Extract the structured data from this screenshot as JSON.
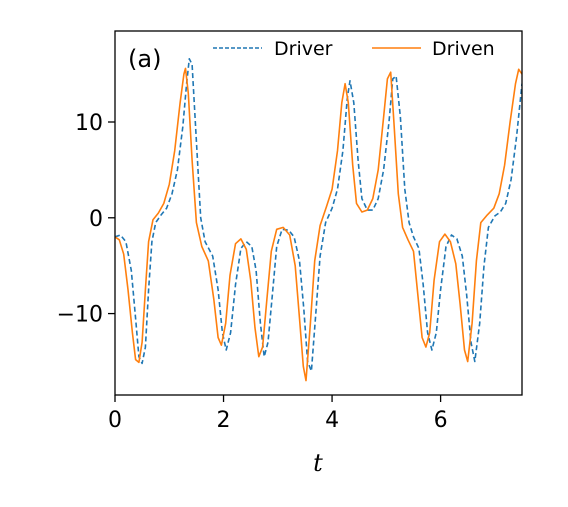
{
  "chart_data": {
    "type": "line",
    "panel_label": "(a)",
    "xlabel": "t",
    "ylabel": "",
    "xlim": [
      0,
      7.5
    ],
    "ylim": [
      -18.5,
      19.5
    ],
    "xticks": [
      0,
      2,
      4,
      6
    ],
    "yticks": [
      10,
      0,
      -10
    ],
    "ytick_labels": [
      "10",
      "0",
      "−10"
    ],
    "grid": false,
    "legend_position": "top-right",
    "series": [
      {
        "name": "Driver",
        "color": "#1f77b4",
        "style": "dashed",
        "points": [
          [
            0.0,
            -2.0
          ],
          [
            0.1,
            -1.8
          ],
          [
            0.2,
            -2.5
          ],
          [
            0.3,
            -5.5
          ],
          [
            0.38,
            -10.5
          ],
          [
            0.44,
            -14.5
          ],
          [
            0.5,
            -15.2
          ],
          [
            0.56,
            -13.5
          ],
          [
            0.62,
            -7.5
          ],
          [
            0.68,
            -2.5
          ],
          [
            0.75,
            -0.5
          ],
          [
            0.85,
            0.3
          ],
          [
            0.95,
            1.0
          ],
          [
            1.05,
            2.5
          ],
          [
            1.15,
            5.0
          ],
          [
            1.25,
            9.5
          ],
          [
            1.32,
            14.0
          ],
          [
            1.37,
            16.6
          ],
          [
            1.42,
            16.0
          ],
          [
            1.5,
            8.0
          ],
          [
            1.58,
            0.0
          ],
          [
            1.66,
            -2.5
          ],
          [
            1.8,
            -4.0
          ],
          [
            1.9,
            -7.5
          ],
          [
            1.98,
            -12.0
          ],
          [
            2.05,
            -13.8
          ],
          [
            2.13,
            -12.0
          ],
          [
            2.22,
            -7.0
          ],
          [
            2.32,
            -3.2
          ],
          [
            2.42,
            -2.5
          ],
          [
            2.52,
            -3.0
          ],
          [
            2.6,
            -5.5
          ],
          [
            2.68,
            -11.0
          ],
          [
            2.75,
            -14.5
          ],
          [
            2.82,
            -13.0
          ],
          [
            2.9,
            -8.0
          ],
          [
            2.98,
            -3.0
          ],
          [
            3.08,
            -1.2
          ],
          [
            3.2,
            -1.3
          ],
          [
            3.3,
            -2.0
          ],
          [
            3.4,
            -4.5
          ],
          [
            3.48,
            -9.5
          ],
          [
            3.55,
            -15.0
          ],
          [
            3.62,
            -16.0
          ],
          [
            3.7,
            -10.0
          ],
          [
            3.78,
            -4.0
          ],
          [
            3.88,
            -0.5
          ],
          [
            4.0,
            1.0
          ],
          [
            4.1,
            3.0
          ],
          [
            4.2,
            7.0
          ],
          [
            4.28,
            12.5
          ],
          [
            4.33,
            14.3
          ],
          [
            4.4,
            12.0
          ],
          [
            4.48,
            6.0
          ],
          [
            4.55,
            2.0
          ],
          [
            4.65,
            0.8
          ],
          [
            4.75,
            0.8
          ],
          [
            4.85,
            2.0
          ],
          [
            4.95,
            5.0
          ],
          [
            5.05,
            10.0
          ],
          [
            5.12,
            14.5
          ],
          [
            5.18,
            14.8
          ],
          [
            5.26,
            10.5
          ],
          [
            5.34,
            3.0
          ],
          [
            5.42,
            -0.5
          ],
          [
            5.5,
            -2.0
          ],
          [
            5.6,
            -3.2
          ],
          [
            5.68,
            -7.0
          ],
          [
            5.76,
            -12.0
          ],
          [
            5.84,
            -13.8
          ],
          [
            5.92,
            -12.0
          ],
          [
            6.0,
            -7.5
          ],
          [
            6.1,
            -3.0
          ],
          [
            6.2,
            -1.8
          ],
          [
            6.3,
            -2.2
          ],
          [
            6.4,
            -4.0
          ],
          [
            6.48,
            -8.0
          ],
          [
            6.56,
            -13.0
          ],
          [
            6.63,
            -15.0
          ],
          [
            6.72,
            -11.0
          ],
          [
            6.8,
            -5.0
          ],
          [
            6.88,
            -1.0
          ],
          [
            7.0,
            0.2
          ],
          [
            7.1,
            0.6
          ],
          [
            7.2,
            1.5
          ],
          [
            7.3,
            4.0
          ],
          [
            7.4,
            8.5
          ],
          [
            7.5,
            14.0
          ]
        ]
      },
      {
        "name": "Driven",
        "color": "#ff7f0e",
        "style": "solid",
        "points": [
          [
            0.0,
            -2.0
          ],
          [
            0.08,
            -2.3
          ],
          [
            0.16,
            -3.8
          ],
          [
            0.24,
            -7.5
          ],
          [
            0.32,
            -12.0
          ],
          [
            0.38,
            -14.8
          ],
          [
            0.44,
            -15.1
          ],
          [
            0.5,
            -13.0
          ],
          [
            0.56,
            -7.5
          ],
          [
            0.62,
            -2.5
          ],
          [
            0.7,
            -0.2
          ],
          [
            0.8,
            0.5
          ],
          [
            0.9,
            1.5
          ],
          [
            1.0,
            3.5
          ],
          [
            1.1,
            7.0
          ],
          [
            1.2,
            12.0
          ],
          [
            1.27,
            15.0
          ],
          [
            1.3,
            15.6
          ],
          [
            1.35,
            13.0
          ],
          [
            1.42,
            6.0
          ],
          [
            1.5,
            -0.5
          ],
          [
            1.6,
            -3.0
          ],
          [
            1.72,
            -4.5
          ],
          [
            1.82,
            -8.5
          ],
          [
            1.9,
            -12.5
          ],
          [
            1.96,
            -13.3
          ],
          [
            2.04,
            -11.0
          ],
          [
            2.12,
            -6.0
          ],
          [
            2.22,
            -2.7
          ],
          [
            2.32,
            -2.2
          ],
          [
            2.42,
            -3.3
          ],
          [
            2.5,
            -6.5
          ],
          [
            2.58,
            -11.5
          ],
          [
            2.65,
            -14.5
          ],
          [
            2.72,
            -13.5
          ],
          [
            2.8,
            -8.5
          ],
          [
            2.88,
            -3.5
          ],
          [
            2.98,
            -1.2
          ],
          [
            3.1,
            -1.0
          ],
          [
            3.22,
            -1.8
          ],
          [
            3.32,
            -5.0
          ],
          [
            3.4,
            -10.5
          ],
          [
            3.47,
            -15.5
          ],
          [
            3.52,
            -17.0
          ],
          [
            3.6,
            -11.0
          ],
          [
            3.68,
            -4.5
          ],
          [
            3.78,
            -0.8
          ],
          [
            3.9,
            1.2
          ],
          [
            4.0,
            3.0
          ],
          [
            4.1,
            7.0
          ],
          [
            4.18,
            12.0
          ],
          [
            4.24,
            14.0
          ],
          [
            4.3,
            12.0
          ],
          [
            4.38,
            5.5
          ],
          [
            4.45,
            1.5
          ],
          [
            4.55,
            0.6
          ],
          [
            4.65,
            0.8
          ],
          [
            4.75,
            2.0
          ],
          [
            4.85,
            5.0
          ],
          [
            4.95,
            10.5
          ],
          [
            5.02,
            14.5
          ],
          [
            5.08,
            15.2
          ],
          [
            5.14,
            10.0
          ],
          [
            5.22,
            2.5
          ],
          [
            5.3,
            -1.0
          ],
          [
            5.4,
            -2.3
          ],
          [
            5.5,
            -3.5
          ],
          [
            5.58,
            -8.0
          ],
          [
            5.66,
            -12.5
          ],
          [
            5.73,
            -13.5
          ],
          [
            5.8,
            -12.0
          ],
          [
            5.88,
            -6.5
          ],
          [
            5.98,
            -2.5
          ],
          [
            6.08,
            -1.7
          ],
          [
            6.18,
            -2.5
          ],
          [
            6.28,
            -4.8
          ],
          [
            6.36,
            -9.0
          ],
          [
            6.44,
            -13.8
          ],
          [
            6.5,
            -15.0
          ],
          [
            6.58,
            -11.0
          ],
          [
            6.66,
            -4.5
          ],
          [
            6.74,
            -0.5
          ],
          [
            6.86,
            0.3
          ],
          [
            6.98,
            1.0
          ],
          [
            7.08,
            2.5
          ],
          [
            7.18,
            5.5
          ],
          [
            7.28,
            10.0
          ],
          [
            7.38,
            14.0
          ],
          [
            7.44,
            15.5
          ],
          [
            7.5,
            15.0
          ]
        ]
      }
    ]
  }
}
